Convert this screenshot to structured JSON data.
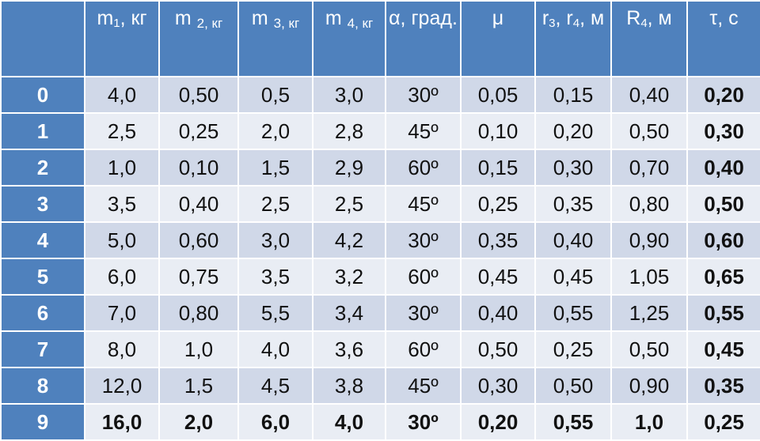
{
  "headers": {
    "index": "",
    "m1_main": "m",
    "m1_sub": "1",
    "m1_unit": ", кг",
    "m2_main": "m ",
    "m2_sub": "2, кг",
    "m3_main": "m ",
    "m3_sub": "3, кг",
    "m4_main": "m ",
    "m4_sub": "4, кг",
    "alpha": "α, град.",
    "mu": "μ",
    "r_a": "r",
    "r_a_sub": "3",
    "r_mid": ", r",
    "r_b_sub": "4",
    "r_unit": ", м",
    "R_main": "R",
    "R_sub": "4",
    "R_unit": ", м",
    "tau": "τ, с"
  },
  "rows": [
    {
      "idx": "0",
      "m1": "4,0",
      "m2": "0,50",
      "m3": "0,5",
      "m4": "3,0",
      "alpha": "30º",
      "mu": "0,05",
      "r": "0,15",
      "R": "0,40",
      "tau": "0,20"
    },
    {
      "idx": "1",
      "m1": "2,5",
      "m2": "0,25",
      "m3": "2,0",
      "m4": "2,8",
      "alpha": "45º",
      "mu": "0,10",
      "r": "0,20",
      "R": "0,50",
      "tau": "0,30"
    },
    {
      "idx": "2",
      "m1": "1,0",
      "m2": "0,10",
      "m3": "1,5",
      "m4": "2,9",
      "alpha": "60º",
      "mu": "0,15",
      "r": "0,30",
      "R": "0,70",
      "tau": "0,40"
    },
    {
      "idx": "3",
      "m1": "3,5",
      "m2": "0,40",
      "m3": "2,5",
      "m4": "2,5",
      "alpha": "45º",
      "mu": "0,25",
      "r": "0,35",
      "R": "0,80",
      "tau": "0,50"
    },
    {
      "idx": "4",
      "m1": "5,0",
      "m2": "0,60",
      "m3": "3,0",
      "m4": "4,2",
      "alpha": "30º",
      "mu": "0,35",
      "r": "0,40",
      "R": "0,90",
      "tau": "0,60"
    },
    {
      "idx": "5",
      "m1": "6,0",
      "m2": "0,75",
      "m3": "3,5",
      "m4": "3,2",
      "alpha": "60º",
      "mu": "0,45",
      "r": "0,45",
      "R": "1,05",
      "tau": "0,65"
    },
    {
      "idx": "6",
      "m1": "7,0",
      "m2": "0,80",
      "m3": "5,5",
      "m4": "3,4",
      "alpha": "30º",
      "mu": "0,40",
      "r": "0,55",
      "R": "1,25",
      "tau": "0,55"
    },
    {
      "idx": "7",
      "m1": "8,0",
      "m2": "1,0",
      "m3": "4,0",
      "m4": "3,6",
      "alpha": "60º",
      "mu": "0,50",
      "r": "0,25",
      "R": "0,50",
      "tau": "0,45"
    },
    {
      "idx": "8",
      "m1": "12,0",
      "m2": "1,5",
      "m3": "4,5",
      "m4": "3,8",
      "alpha": "45º",
      "mu": "0,30",
      "r": "0,50",
      "R": "0,90",
      "tau": "0,35"
    },
    {
      "idx": "9",
      "m1": "16,0",
      "m2": "2,0",
      "m3": "6,0",
      "m4": "4,0",
      "alpha": "30º",
      "mu": "0,20",
      "r": "0,55",
      "R": "1,0",
      "tau": "0,25"
    }
  ],
  "colors": {
    "header": "#4f81bd",
    "row_dark": "#d0d8e8",
    "row_light": "#e9edf4"
  }
}
